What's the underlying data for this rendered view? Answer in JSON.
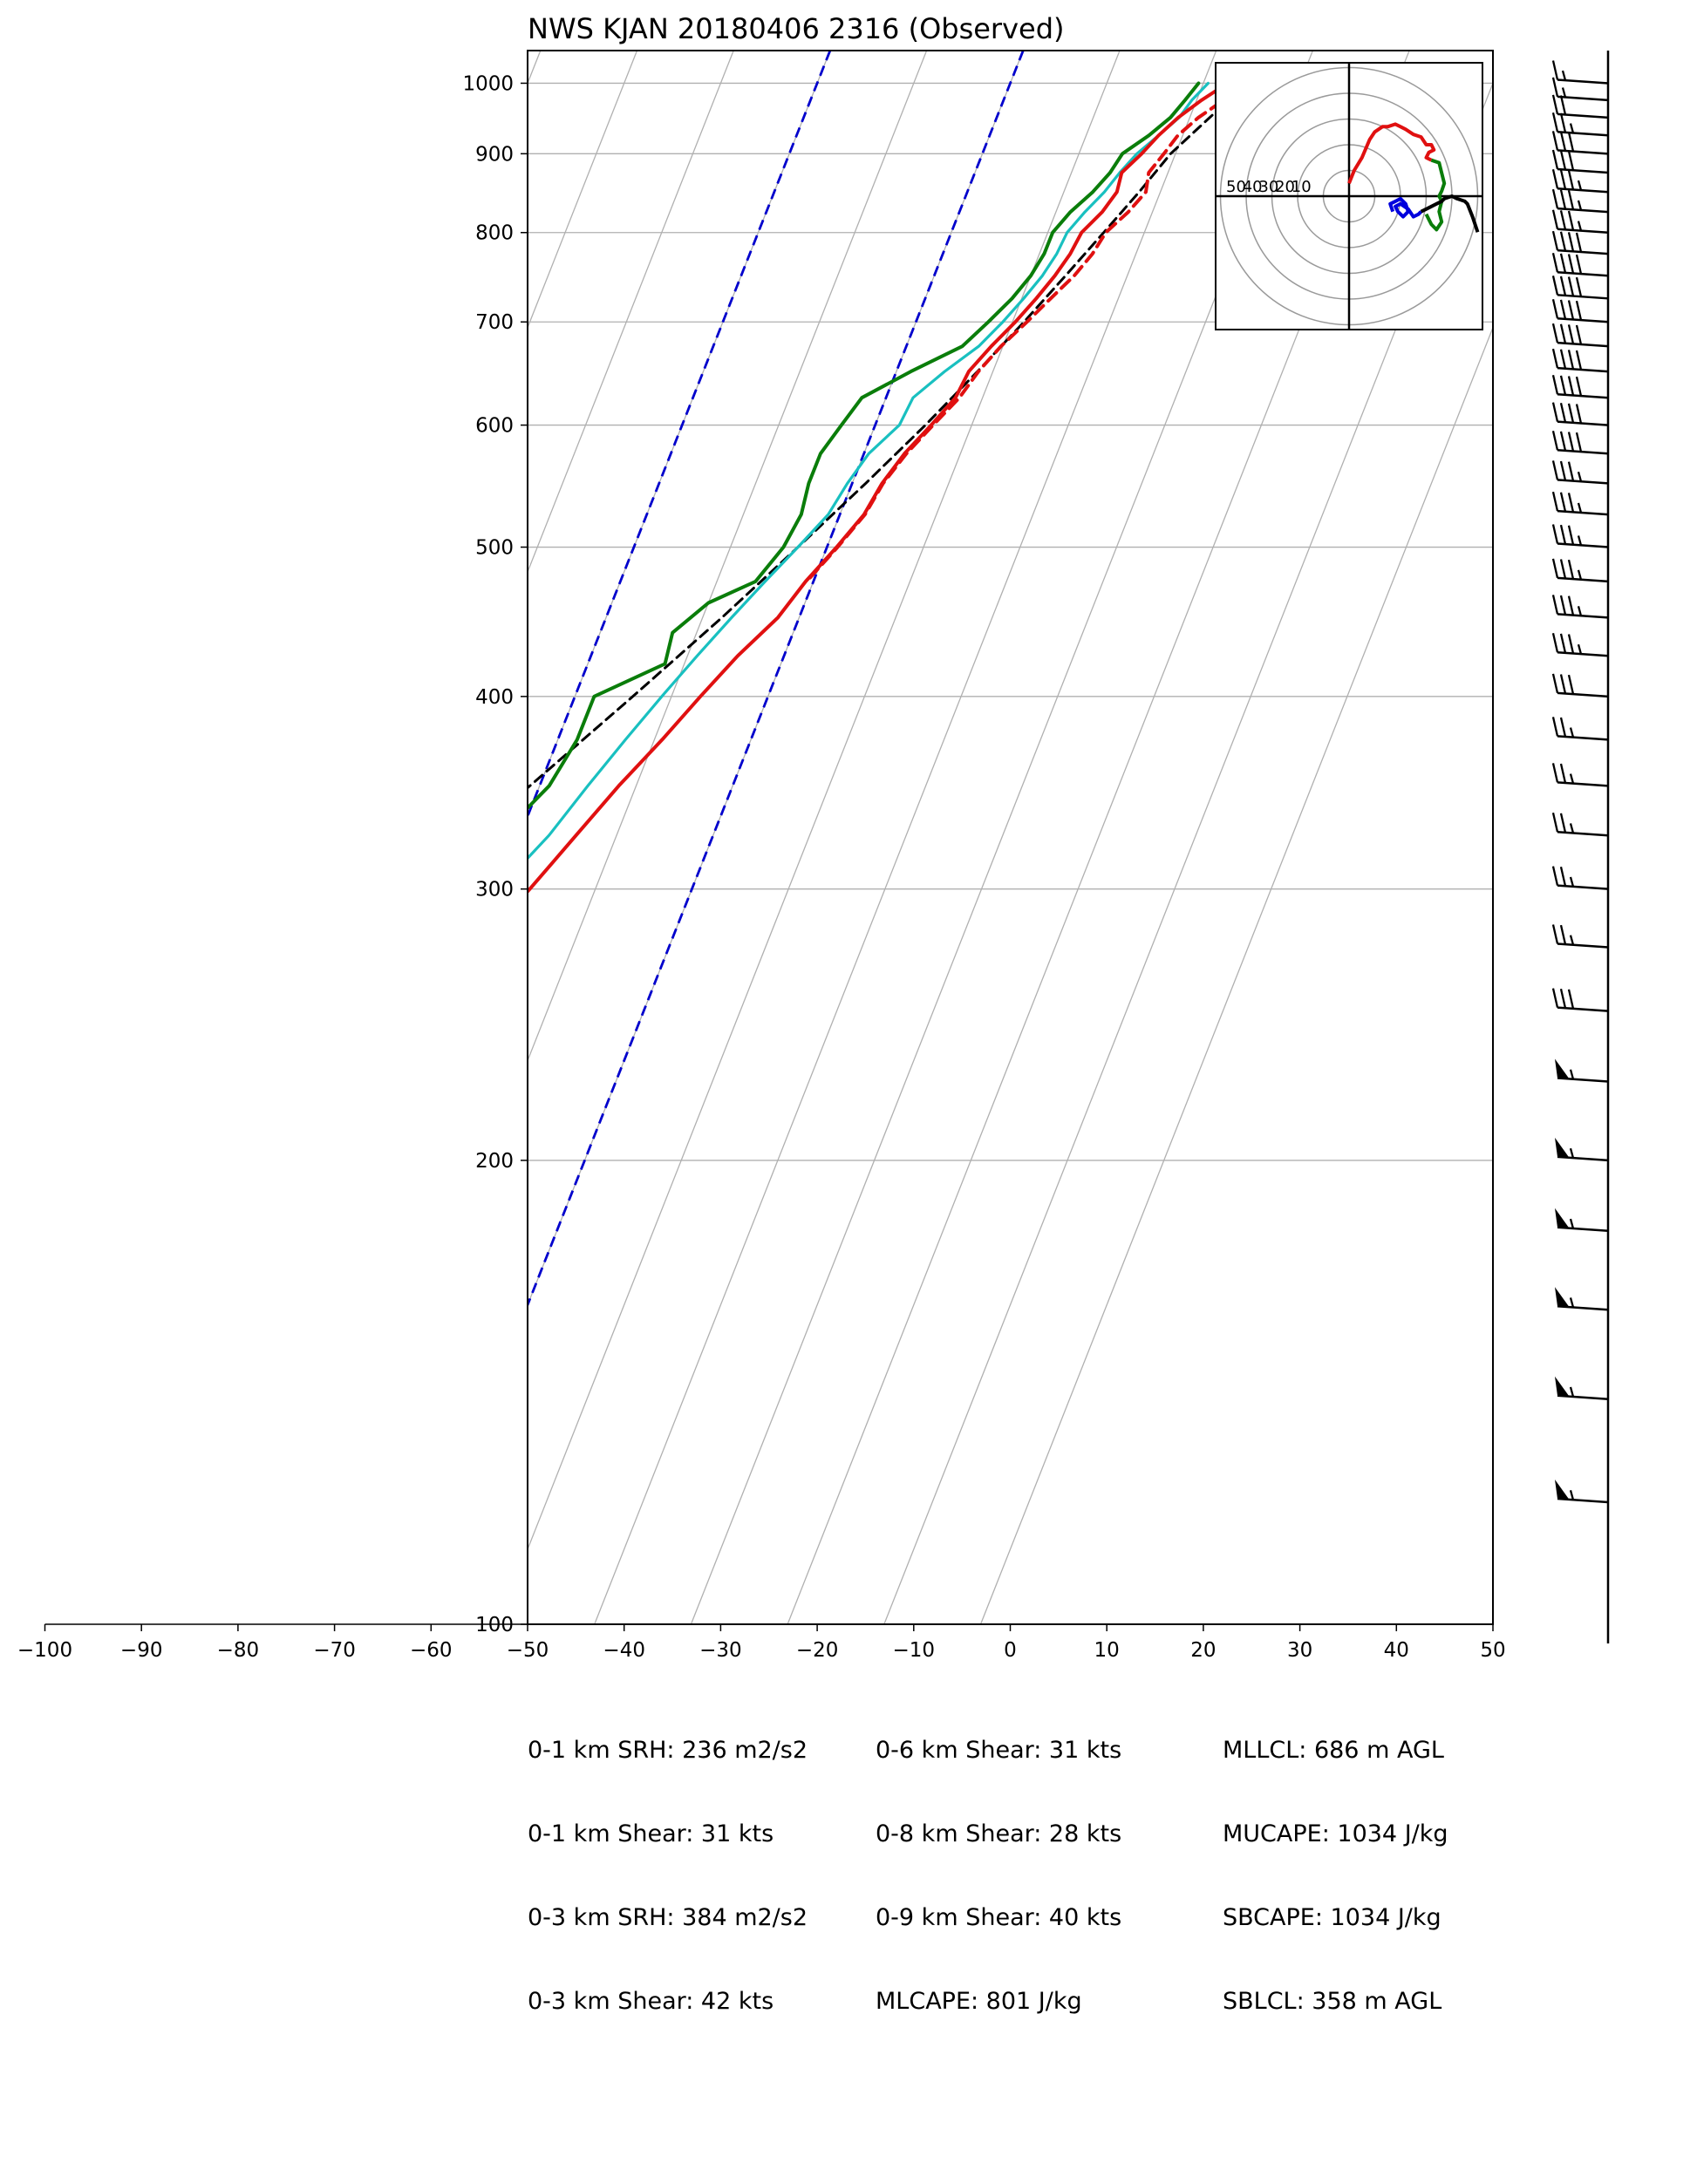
{
  "title": "NWS KJAN 20180406 2316   (Observed)",
  "chart_data": {
    "type": "line",
    "subtype": "skew-T log-P sounding",
    "title": "NWS KJAN 20180406 2316   (Observed)",
    "x_ticks": [
      -100,
      -90,
      -80,
      -70,
      -60,
      -50,
      -40,
      -30,
      -20,
      -10,
      0,
      10,
      20,
      30,
      40,
      50
    ],
    "xlim": [
      -50,
      50
    ],
    "y_ticks": [
      100,
      200,
      300,
      400,
      500,
      600,
      700,
      800,
      900,
      1000
    ],
    "ylim": [
      1050,
      100
    ],
    "y_scale": "log",
    "grid": true,
    "colors": {
      "temperature": "#e01010",
      "virtual_temperature": "#e01010",
      "dewpoint": "#0a7d0a",
      "wetbulb": "#19c0c0",
      "parcel": "#000000",
      "isotherms_highlight": "#0000cc",
      "grid": "#b0b0b0"
    },
    "highlight_isotherms": [
      -20,
      0
    ],
    "series": [
      {
        "name": "temperature",
        "style": "solid",
        "points": [
          [
            1000,
            22.5
          ],
          [
            975,
            20.5
          ],
          [
            950,
            18.8
          ],
          [
            925,
            17.5
          ],
          [
            900,
            16.5
          ],
          [
            875,
            15.2
          ],
          [
            850,
            15.5
          ],
          [
            825,
            14.8
          ],
          [
            800,
            13.5
          ],
          [
            775,
            13.2
          ],
          [
            750,
            12.5
          ],
          [
            725,
            11.5
          ],
          [
            700,
            10.3
          ],
          [
            675,
            8.8
          ],
          [
            650,
            7.5
          ],
          [
            625,
            7.2
          ],
          [
            600,
            5.8
          ],
          [
            575,
            4.2
          ],
          [
            550,
            3.1
          ],
          [
            525,
            2.5
          ],
          [
            500,
            1.0
          ],
          [
            475,
            -0.8
          ],
          [
            450,
            -2.2
          ],
          [
            425,
            -4.8
          ],
          [
            400,
            -7.0
          ],
          [
            375,
            -9.2
          ],
          [
            350,
            -11.8
          ],
          [
            325,
            -14.2
          ],
          [
            300,
            -16.8
          ],
          [
            275,
            -19.8
          ],
          [
            250,
            -23.0
          ],
          [
            225,
            -26.3
          ],
          [
            210,
            -28.5
          ],
          [
            200,
            -29.0
          ],
          [
            185,
            -31.0
          ],
          [
            170,
            -34.0
          ],
          [
            160,
            -36.0
          ],
          [
            152,
            -36.0
          ],
          [
            146,
            -33.0
          ],
          [
            140,
            -30.0
          ],
          [
            135,
            -28.0
          ],
          [
            125,
            -28.0
          ],
          [
            118,
            -28.0
          ],
          [
            110,
            -30.0
          ],
          [
            100,
            -32.0
          ]
        ]
      },
      {
        "name": "virtual temperature",
        "style": "dashed",
        "points": [
          [
            1000,
            25.0
          ],
          [
            975,
            22.8
          ],
          [
            950,
            20.9
          ],
          [
            925,
            19.5
          ],
          [
            900,
            18.8
          ],
          [
            875,
            18.0
          ],
          [
            850,
            18.5
          ],
          [
            825,
            17.5
          ],
          [
            800,
            16.0
          ],
          [
            775,
            15.5
          ],
          [
            750,
            14.5
          ],
          [
            725,
            13.0
          ],
          [
            700,
            11.5
          ],
          [
            675,
            9.8
          ],
          [
            650,
            8.5
          ],
          [
            625,
            7.6
          ],
          [
            600,
            6.0
          ],
          [
            575,
            4.4
          ],
          [
            550,
            3.2
          ],
          [
            525,
            2.6
          ],
          [
            500,
            1.1
          ],
          [
            475,
            -0.7
          ]
        ]
      },
      {
        "name": "dewpoint",
        "style": "solid",
        "points": [
          [
            1000,
            19.5
          ],
          [
            975,
            18.8
          ],
          [
            950,
            18.0
          ],
          [
            925,
            16.5
          ],
          [
            900,
            14.5
          ],
          [
            875,
            14.0
          ],
          [
            850,
            13.0
          ],
          [
            825,
            11.5
          ],
          [
            800,
            10.5
          ],
          [
            775,
            10.5
          ],
          [
            750,
            10.0
          ],
          [
            725,
            9.0
          ],
          [
            700,
            7.5
          ],
          [
            675,
            5.8
          ],
          [
            650,
            1.5
          ],
          [
            625,
            -2.5
          ],
          [
            600,
            -3.5
          ],
          [
            575,
            -4.5
          ],
          [
            550,
            -4.5
          ],
          [
            525,
            -4.0
          ],
          [
            500,
            -4.5
          ],
          [
            475,
            -6.0
          ],
          [
            460,
            -10.0
          ],
          [
            440,
            -12.5
          ],
          [
            420,
            -12.0
          ],
          [
            400,
            -18.0
          ],
          [
            375,
            -18.0
          ],
          [
            350,
            -19.0
          ],
          [
            325,
            -22.0
          ],
          [
            300,
            -25.5
          ],
          [
            280,
            -30.0
          ],
          [
            260,
            -33.5
          ],
          [
            240,
            -36.0
          ],
          [
            220,
            -38.0
          ],
          [
            200,
            -41.5
          ],
          [
            185,
            -43.5
          ],
          [
            170,
            -45.0
          ],
          [
            160,
            -47.0
          ],
          [
            150,
            -46.5
          ],
          [
            145,
            -44.0
          ],
          [
            138,
            -45.5
          ],
          [
            130,
            -48.5
          ],
          [
            120,
            -51.5
          ],
          [
            110,
            -53.5
          ],
          [
            100,
            -55.5
          ]
        ]
      },
      {
        "name": "wetbulb",
        "style": "solid",
        "points": [
          [
            1000,
            20.5
          ],
          [
            975,
            19.5
          ],
          [
            950,
            18.9
          ],
          [
            925,
            17.5
          ],
          [
            900,
            16.0
          ],
          [
            875,
            15.0
          ],
          [
            850,
            14.2
          ],
          [
            825,
            13.0
          ],
          [
            800,
            12.0
          ],
          [
            775,
            11.8
          ],
          [
            750,
            11.2
          ],
          [
            725,
            10.2
          ],
          [
            700,
            9.0
          ],
          [
            675,
            7.5
          ],
          [
            650,
            5.0
          ],
          [
            625,
            2.8
          ],
          [
            600,
            2.5
          ],
          [
            575,
            0.5
          ],
          [
            550,
            -0.5
          ],
          [
            525,
            -1.2
          ],
          [
            500,
            -3.0
          ],
          [
            475,
            -5.0
          ],
          [
            450,
            -7.0
          ],
          [
            425,
            -9.0
          ],
          [
            400,
            -11.0
          ],
          [
            375,
            -13.0
          ],
          [
            350,
            -15.0
          ],
          [
            325,
            -17.0
          ],
          [
            300,
            -20.0
          ],
          [
            275,
            -22.5
          ],
          [
            250,
            -25.0
          ],
          [
            225,
            -28.0
          ],
          [
            210,
            -29.5
          ],
          [
            200,
            -30.5
          ],
          [
            185,
            -31.5
          ],
          [
            170,
            -35.0
          ],
          [
            160,
            -36.8
          ],
          [
            152,
            -36.8
          ],
          [
            146,
            -33.3
          ],
          [
            140,
            -30.5
          ],
          [
            135,
            -28.5
          ],
          [
            125,
            -28.5
          ],
          [
            118,
            -28.5
          ],
          [
            110,
            -30.5
          ],
          [
            100,
            -32.5
          ]
        ]
      },
      {
        "name": "parcel",
        "style": "dashed",
        "points": [
          [
            1000,
            24.5
          ],
          [
            900,
            19.5
          ],
          [
            850,
            17.8
          ],
          [
            800,
            15.8
          ],
          [
            750,
            13.6
          ],
          [
            700,
            11.2
          ],
          [
            650,
            8.4
          ],
          [
            600,
            5.2
          ],
          [
            550,
            1.4
          ],
          [
            500,
            -3.0
          ],
          [
            450,
            -8.0
          ],
          [
            400,
            -14.0
          ],
          [
            350,
            -21.0
          ],
          [
            300,
            -29.0
          ],
          [
            250,
            -38.0
          ],
          [
            200,
            -48.0
          ],
          [
            170,
            -55.5
          ],
          [
            150,
            -61.5
          ],
          [
            130,
            -67.5
          ],
          [
            115,
            -72.5
          ],
          [
            100,
            -78.0
          ]
        ]
      }
    ],
    "hodograph": {
      "rings": [
        10,
        20,
        30,
        40,
        50
      ],
      "ring_labels": [
        "50",
        "40",
        "30",
        "20",
        "10"
      ],
      "segments": [
        {
          "color": "#e01010",
          "points": [
            [
              0,
              5
            ],
            [
              2,
              10
            ],
            [
              5,
              15
            ],
            [
              8,
              22
            ],
            [
              10,
              25
            ],
            [
              13,
              27
            ],
            [
              15,
              27
            ],
            [
              18,
              28
            ],
            [
              20,
              27
            ],
            [
              22,
              26
            ],
            [
              25,
              24
            ],
            [
              28,
              23
            ],
            [
              30,
              20
            ],
            [
              32,
              20
            ],
            [
              33,
              18
            ],
            [
              31,
              17
            ],
            [
              30,
              15
            ],
            [
              32,
              14
            ]
          ]
        },
        {
          "color": "#0a7d0a",
          "points": [
            [
              32,
              14
            ],
            [
              35,
              13
            ],
            [
              36,
              9
            ],
            [
              37,
              5
            ],
            [
              36,
              2
            ],
            [
              35,
              0
            ],
            [
              36,
              -2
            ],
            [
              35,
              -6
            ],
            [
              36,
              -10
            ],
            [
              34,
              -13
            ],
            [
              32,
              -11
            ],
            [
              30,
              -7
            ]
          ]
        },
        {
          "color": "#0000dd",
          "points": [
            [
              17,
              -6
            ],
            [
              16,
              -3
            ],
            [
              18,
              -2
            ],
            [
              20,
              -1
            ],
            [
              22,
              -3
            ],
            [
              23,
              -6
            ],
            [
              21,
              -8
            ],
            [
              19,
              -6
            ],
            [
              18,
              -4
            ],
            [
              20,
              -3
            ],
            [
              23,
              -5
            ],
            [
              25,
              -8
            ],
            [
              27,
              -7
            ],
            [
              28,
              -6
            ]
          ]
        },
        {
          "color": "#000000",
          "points": [
            [
              28,
              -6
            ],
            [
              30,
              -5
            ],
            [
              32,
              -4
            ],
            [
              34,
              -3
            ],
            [
              36,
              -2
            ],
            [
              37,
              -1
            ],
            [
              40,
              0
            ],
            [
              42,
              -1
            ],
            [
              45,
              -2
            ],
            [
              46,
              -3
            ],
            [
              48,
              -8
            ],
            [
              50,
              -14
            ]
          ]
        }
      ]
    },
    "wind_barbs": {
      "pressure_levels": [
        1000,
        975,
        950,
        925,
        900,
        875,
        850,
        825,
        800,
        775,
        750,
        725,
        700,
        675,
        650,
        625,
        600,
        575,
        550,
        525,
        500,
        475,
        450,
        425,
        400,
        375,
        350,
        325,
        300,
        275,
        250,
        225,
        200,
        180,
        160,
        140,
        120
      ],
      "speeds_kt": [
        15,
        15,
        20,
        25,
        30,
        30,
        35,
        35,
        35,
        40,
        40,
        40,
        40,
        40,
        40,
        40,
        40,
        40,
        35,
        35,
        35,
        35,
        35,
        35,
        30,
        25,
        25,
        25,
        25,
        25,
        30,
        55,
        55,
        55,
        55,
        55,
        55
      ]
    },
    "stats": {
      "col1": [
        "0-1 km SRH: 236 m2/s2",
        "0-1 km Shear: 31 kts",
        "0-3 km SRH: 384 m2/s2",
        "0-3 km Shear: 42 kts"
      ],
      "col2": [
        "0-6 km Shear: 31 kts",
        "0-8 km Shear: 28 kts",
        "0-9 km Shear: 40 kts",
        "MLCAPE: 801 J/kg"
      ],
      "col3": [
        "MLLCL: 686 m AGL",
        "MUCAPE: 1034 J/kg",
        "SBCAPE: 1034 J/kg",
        "SBLCL: 358 m AGL"
      ]
    }
  }
}
